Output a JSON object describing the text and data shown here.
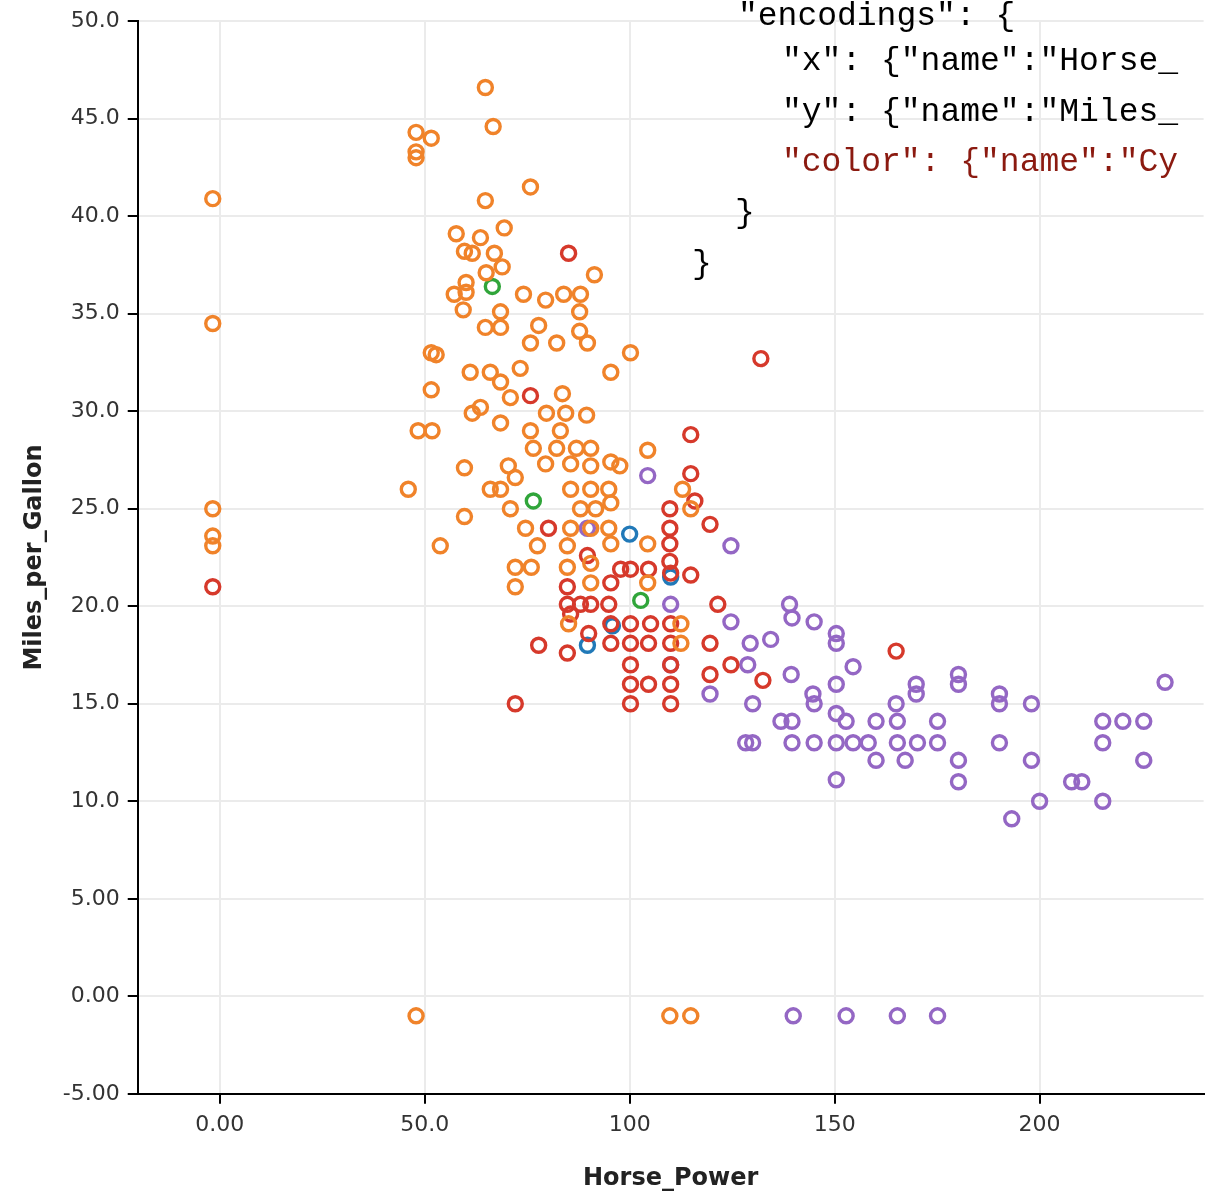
{
  "chart_data": {
    "type": "scatter",
    "xlabel": "Horse_Power",
    "ylabel": "Miles_per_Gallon",
    "xlim": [
      -20,
      240
    ],
    "ylim": [
      -5,
      50
    ],
    "xticks": [
      {
        "value": 0,
        "label": "0.00"
      },
      {
        "value": 50,
        "label": "50.0"
      },
      100,
      150,
      200
    ],
    "yticks": [
      {
        "value": -5,
        "label": "-5.00"
      },
      {
        "value": 0,
        "label": "0.00"
      },
      {
        "value": 5,
        "label": "5.00"
      },
      {
        "value": 10,
        "label": "10.0"
      },
      {
        "value": 15,
        "label": "15.0"
      },
      {
        "value": 20,
        "label": "20.0"
      },
      {
        "value": 25,
        "label": "25.0"
      },
      {
        "value": 30,
        "label": "30.0"
      },
      {
        "value": 35,
        "label": "35.0"
      },
      {
        "value": 40,
        "label": "40.0"
      },
      {
        "value": 45,
        "label": "45.0"
      },
      {
        "value": 50,
        "label": "50.0"
      }
    ],
    "grid": true,
    "legend": false,
    "marker": "circle",
    "annotations": [
      "\"encodings\": {",
      "\"x\": {\"name\":\"Horse_",
      "\"y\": {\"name\":\"Miles_",
      "\"color\": {\"name\":\"Cy",
      "}",
      "}"
    ],
    "series": [
      {
        "color": "#f0832a",
        "x": [
          -1.7,
          -1.7,
          -1.7,
          -1.7,
          -1.7,
          47.9,
          109.8,
          114.9,
          64.8,
          66.7,
          47.9,
          51.6,
          47.9,
          47.9,
          75.8,
          64.8,
          69.4,
          57.7,
          63.6,
          59.7,
          61.6,
          67,
          68.9,
          91.4,
          65,
          57.2,
          60.1,
          74.1,
          79.5,
          83.9,
          88,
          87.8,
          59.4,
          68.5,
          68.5,
          64.8,
          77.8,
          87.8,
          89.7,
          82.2,
          75.8,
          100.2,
          51.6,
          52.8,
          95.4,
          61.1,
          66,
          68.5,
          73.3,
          51.6,
          70.9,
          83.6,
          79.7,
          84.4,
          89.5,
          63.6,
          61.6,
          68.5,
          48.4,
          51.8,
          75.8,
          83.1,
          76.5,
          82.2,
          87,
          90.5,
          104.4,
          79.5,
          85.6,
          90.5,
          95.4,
          97.6,
          59.7,
          70.4,
          72.1,
          46,
          66,
          68.5,
          85.6,
          90.5,
          94.9,
          112.9,
          70.9,
          88,
          91.7,
          95.4,
          114.9,
          59.7,
          74.6,
          85.6,
          90.5,
          94.9,
          53.8,
          77.5,
          84.8,
          104.4,
          95.4,
          72.1,
          76,
          84.8,
          72.1,
          90.5,
          85.1,
          112.5,
          112.5,
          90.5,
          104.4,
          60.1
        ],
        "values": [
          40.9,
          34.5,
          25.0,
          23.6,
          23.1,
          -1,
          -1,
          -1,
          46.6,
          44.6,
          44.3,
          44.0,
          43.3,
          43.0,
          41.5,
          40.8,
          39.4,
          39.1,
          38.9,
          38.2,
          38.1,
          38.1,
          37.4,
          37.0,
          37.1,
          36.0,
          36.1,
          36.0,
          35.7,
          36.0,
          36.0,
          35.1,
          35.2,
          35.1,
          34.3,
          34.3,
          34.4,
          34.1,
          33.5,
          33.5,
          33.5,
          33.0,
          33.0,
          32.9,
          32.0,
          32.0,
          32.0,
          31.5,
          32.2,
          31.1,
          30.7,
          30.9,
          29.9,
          29.9,
          29.8,
          30.2,
          29.9,
          29.4,
          29.0,
          29.0,
          29.0,
          29.0,
          28.1,
          28.1,
          28.1,
          28.1,
          28.0,
          27.3,
          27.3,
          27.2,
          27.4,
          27.2,
          27.1,
          27.2,
          26.6,
          26.0,
          26.0,
          26.0,
          26.0,
          26.0,
          26.0,
          26.0,
          25.0,
          25.0,
          25.0,
          25.3,
          25.0,
          24.6,
          24.0,
          24.0,
          24.0,
          24.0,
          23.1,
          23.1,
          23.1,
          23.2,
          23.2,
          22.0,
          22.0,
          22.0,
          21.0,
          22.2,
          19.1,
          19.1,
          18.1,
          21.2,
          21.2,
          36.6
        ]
      },
      {
        "color": "#d6392b",
        "x": [
          -1.7,
          85.1,
          132,
          75.8,
          114.9,
          114.9,
          115.9,
          109.8,
          119.6,
          109.8,
          109.8,
          109.8,
          110,
          114.9,
          80.2,
          89.7,
          84.8,
          84.8,
          88,
          90.5,
          94.9,
          97.8,
          100.2,
          104.6,
          95.4,
          100.2,
          105.1,
          110,
          90,
          95.4,
          100.2,
          104.6,
          110,
          77.8,
          84.8,
          100.2,
          110,
          100.2,
          104.6,
          110,
          100.2,
          110,
          72.1,
          119.6,
          121.5,
          119.6,
          124.7,
          132.5,
          165,
          85.6,
          95.4
        ],
        "values": [
          21.0,
          38.1,
          32.7,
          30.8,
          28.8,
          26.8,
          25.4,
          25.0,
          24.2,
          24.0,
          23.2,
          22.3,
          21.7,
          21.6,
          24.0,
          22.6,
          21.0,
          20.1,
          20.1,
          20.1,
          20.1,
          21.9,
          21.9,
          21.9,
          19.1,
          19.1,
          19.1,
          19.1,
          18.6,
          18.1,
          18.1,
          18.1,
          18.1,
          18.0,
          17.6,
          17.0,
          17.0,
          16.0,
          16.0,
          16.0,
          15.0,
          15.0,
          15.0,
          18.1,
          20.1,
          16.5,
          17.0,
          16.2,
          17.7,
          19.6,
          21.2
        ]
      },
      {
        "color": "#9467c4",
        "x": [
          104.4,
          124.7,
          124.7,
          119.6,
          139,
          139.6,
          145,
          150.4,
          150.4,
          154.5,
          134.4,
          129.4,
          128.8,
          130,
          128.3,
          130,
          136.9,
          139.6,
          139.6,
          145,
          150.4,
          150.4,
          139.4,
          144.7,
          145,
          150.4,
          150.4,
          152.8,
          154.5,
          158.2,
          160.1,
          160.1,
          165.3,
          165.3,
          167.2,
          165,
          169.9,
          169.9,
          175.1,
          175.1,
          170.2,
          180.2,
          180.2,
          180.2,
          180.2,
          190.2,
          190.2,
          190.2,
          198,
          198,
          200,
          193.2,
          207.8,
          210.3,
          215.4,
          215.4,
          215.4,
          220.3,
          225.4,
          225.4,
          230.6,
          110,
          110,
          89.7,
          139.9,
          152.8,
          165.3,
          175.1
        ],
        "values": [
          26.7,
          23.1,
          19.2,
          15.5,
          20.1,
          19.4,
          19.2,
          18.6,
          18.1,
          16.9,
          18.3,
          18.1,
          17.0,
          15.0,
          13.0,
          13.0,
          14.1,
          14.1,
          13.0,
          13.0,
          13.0,
          11.1,
          16.5,
          15.5,
          15.0,
          16.0,
          14.5,
          14.1,
          13.0,
          13.0,
          14.1,
          12.1,
          14.1,
          13.0,
          12.1,
          15.0,
          16.0,
          15.5,
          14.1,
          13.0,
          13.0,
          16.5,
          16.0,
          12.1,
          11.0,
          15.5,
          15.0,
          13.0,
          15.0,
          12.1,
          10.0,
          9.1,
          11.0,
          11.0,
          14.1,
          13.0,
          10.0,
          14.1,
          14.1,
          12.1,
          16.1,
          20.1,
          17.0,
          24.0,
          -1,
          -1,
          -1,
          -1
        ]
      },
      {
        "color": "#2179b8",
        "x": [
          100,
          89.7,
          95.8,
          110
        ],
        "values": [
          23.7,
          18.0,
          19.0,
          21.5
        ]
      },
      {
        "color": "#30a53a",
        "x": [
          66.5,
          76.5,
          102.7
        ],
        "values": [
          36.4,
          25.4,
          20.3
        ]
      }
    ]
  }
}
